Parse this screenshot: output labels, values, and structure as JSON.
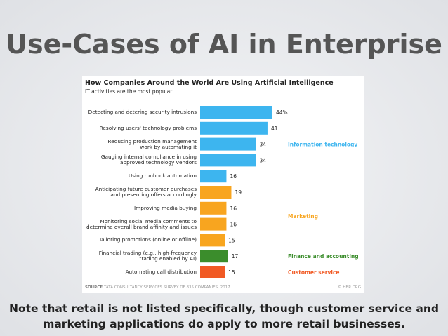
{
  "slide": {
    "title": "Use-Cases of AI in Enterprise",
    "note": [
      "Note that retail is not listed specifically, though customer service and",
      "marketing applications do apply to more retail businesses."
    ]
  },
  "chart_data": {
    "type": "bar",
    "orientation": "horizontal",
    "title": "How Companies Around the World Are Using Artificial Intelligence",
    "subtitle": "IT activities are the most popular.",
    "source_label": "SOURCE",
    "source": "TATA CONSULTANCY SERVICES SURVEY OF 835 COMPANIES, 2017",
    "credit": "© HBR.ORG",
    "categories": [
      "Detecting and detering security intrusions",
      "Resolving users' technology problems",
      "Reducing production management\nwork by automating it",
      "Gauging internal compliance in using\napproved technology vendors",
      "Using runbook automation",
      "Anticipating future customer purchases\nand presenting offers accordingly",
      "Improving media buying",
      "Monitoring social media comments to\ndetermine overall brand affinity and issues",
      "Tailoring promotions (online or offline)",
      "Financial trading (e.g., high-frequency\ntrading enabled by AI)",
      "Automating call distribution"
    ],
    "value_labels": [
      "44%",
      "41",
      "34",
      "34",
      "16",
      "19",
      "16",
      "16",
      "15",
      "17",
      "15"
    ],
    "series": [
      {
        "name": "Information technology",
        "color": "#3db5ef",
        "values": [
          44,
          41,
          34,
          34,
          16,
          null,
          null,
          null,
          null,
          null,
          null
        ]
      },
      {
        "name": "Marketing",
        "color": "#f8a51f",
        "values": [
          null,
          null,
          null,
          null,
          null,
          19,
          16,
          16,
          15,
          null,
          null
        ]
      },
      {
        "name": "Finance and accounting",
        "color": "#3b8d2c",
        "values": [
          null,
          null,
          null,
          null,
          null,
          null,
          null,
          null,
          null,
          17,
          null
        ]
      },
      {
        "name": "Customer service",
        "color": "#f15a24",
        "values": [
          null,
          null,
          null,
          null,
          null,
          null,
          null,
          null,
          null,
          null,
          15
        ]
      }
    ]
  }
}
